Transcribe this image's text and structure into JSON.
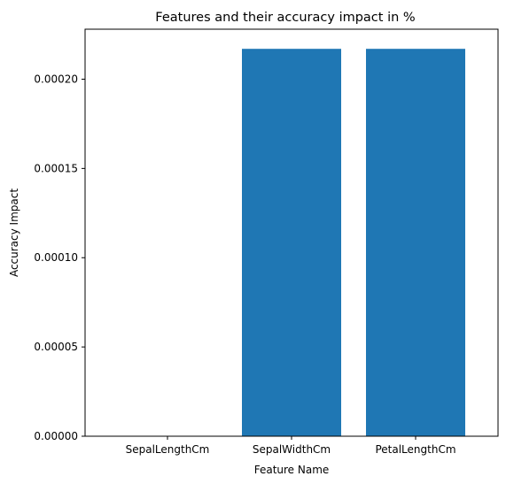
{
  "chart_data": {
    "type": "bar",
    "title": "Features and their accuracy impact in %",
    "xlabel": "Feature Name",
    "ylabel": "Accuracy Impact",
    "categories": [
      "SepalLengthCm",
      "SepalWidthCm",
      "PetalLengthCm"
    ],
    "values": [
      0.0,
      0.000217,
      0.000217
    ],
    "ylim": [
      0,
      0.000228
    ],
    "yticks": [
      0,
      5e-05,
      0.0001,
      0.00015,
      0.0002
    ],
    "ytick_labels": [
      "0.00000",
      "0.00005",
      "0.00010",
      "0.00015",
      "0.00020"
    ],
    "grid": false,
    "legend": "none",
    "bar_color": "#1f77b4"
  }
}
